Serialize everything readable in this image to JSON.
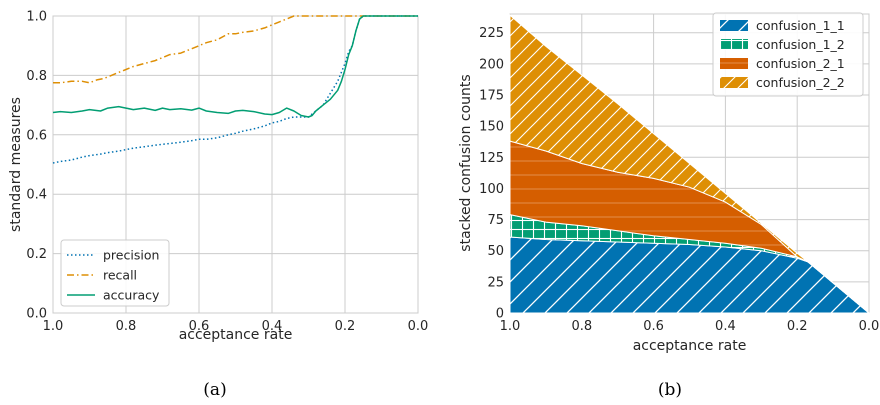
{
  "panel_a": {
    "caption": "(a)",
    "chart_data": {
      "type": "line",
      "xlabel": "acceptance rate",
      "ylabel": "standard measures",
      "xlim": [
        1.0,
        0.0
      ],
      "ylim": [
        0.0,
        1.0
      ],
      "x_reversed": true,
      "xticks": [
        "1.0",
        "0.8",
        "0.6",
        "0.4",
        "0.2",
        "0.0"
      ],
      "yticks": [
        "0.0",
        "0.2",
        "0.4",
        "0.6",
        "0.8",
        "1.0"
      ],
      "grid": true,
      "legend_position": "lower-left",
      "series": [
        {
          "name": "precision",
          "color": "#0072b2",
          "style": "dotted",
          "x": [
            1.0,
            0.98,
            0.95,
            0.92,
            0.9,
            0.87,
            0.85,
            0.82,
            0.8,
            0.78,
            0.75,
            0.72,
            0.7,
            0.67,
            0.65,
            0.62,
            0.6,
            0.58,
            0.55,
            0.52,
            0.5,
            0.48,
            0.45,
            0.42,
            0.4,
            0.38,
            0.36,
            0.34,
            0.32,
            0.3,
            0.28,
            0.26,
            0.24,
            0.22,
            0.2,
            0.19,
            0.18,
            0.17,
            0.16,
            0.15,
            0.1,
            0.05,
            0.0
          ],
          "y": [
            0.505,
            0.51,
            0.515,
            0.525,
            0.53,
            0.535,
            0.54,
            0.545,
            0.55,
            0.555,
            0.56,
            0.565,
            0.568,
            0.572,
            0.575,
            0.58,
            0.585,
            0.585,
            0.59,
            0.6,
            0.605,
            0.612,
            0.62,
            0.63,
            0.64,
            0.645,
            0.655,
            0.66,
            0.66,
            0.66,
            0.68,
            0.7,
            0.74,
            0.78,
            0.84,
            0.88,
            0.9,
            0.95,
            0.99,
            1.0,
            1.0,
            1.0,
            1.0
          ]
        },
        {
          "name": "recall",
          "color": "#de8f05",
          "style": "dashdot",
          "x": [
            1.0,
            0.98,
            0.95,
            0.92,
            0.9,
            0.88,
            0.86,
            0.84,
            0.82,
            0.8,
            0.78,
            0.75,
            0.72,
            0.7,
            0.68,
            0.65,
            0.62,
            0.6,
            0.58,
            0.55,
            0.52,
            0.5,
            0.48,
            0.45,
            0.42,
            0.4,
            0.38,
            0.36,
            0.34,
            0.32,
            0.3,
            0.2,
            0.1,
            0.0
          ],
          "y": [
            0.775,
            0.775,
            0.78,
            0.78,
            0.775,
            0.785,
            0.79,
            0.8,
            0.81,
            0.82,
            0.83,
            0.84,
            0.85,
            0.86,
            0.87,
            0.875,
            0.89,
            0.9,
            0.91,
            0.92,
            0.94,
            0.94,
            0.945,
            0.95,
            0.96,
            0.97,
            0.98,
            0.99,
            1.0,
            1.0,
            1.0,
            1.0,
            1.0,
            1.0
          ]
        },
        {
          "name": "accuracy",
          "color": "#029e73",
          "style": "solid",
          "x": [
            1.0,
            0.98,
            0.95,
            0.92,
            0.9,
            0.87,
            0.85,
            0.82,
            0.8,
            0.78,
            0.75,
            0.72,
            0.7,
            0.68,
            0.65,
            0.62,
            0.6,
            0.58,
            0.55,
            0.52,
            0.5,
            0.48,
            0.45,
            0.42,
            0.4,
            0.38,
            0.36,
            0.34,
            0.32,
            0.3,
            0.29,
            0.28,
            0.26,
            0.24,
            0.22,
            0.21,
            0.2,
            0.19,
            0.18,
            0.17,
            0.16,
            0.15,
            0.1,
            0.05,
            0.0
          ],
          "y": [
            0.675,
            0.678,
            0.675,
            0.68,
            0.685,
            0.68,
            0.69,
            0.695,
            0.69,
            0.685,
            0.69,
            0.682,
            0.69,
            0.685,
            0.688,
            0.683,
            0.69,
            0.68,
            0.675,
            0.672,
            0.68,
            0.682,
            0.678,
            0.67,
            0.668,
            0.675,
            0.69,
            0.68,
            0.665,
            0.66,
            0.665,
            0.68,
            0.7,
            0.72,
            0.75,
            0.78,
            0.82,
            0.87,
            0.9,
            0.95,
            0.99,
            1.0,
            1.0,
            1.0,
            1.0
          ]
        }
      ]
    }
  },
  "panel_b": {
    "caption": "(b)",
    "chart_data": {
      "type": "area",
      "stacked": true,
      "xlabel": "acceptance rate",
      "ylabel": "stacked confusion counts",
      "xlim": [
        1.0,
        0.0
      ],
      "ylim": [
        0,
        240
      ],
      "x_reversed": true,
      "xticks": [
        "1.0",
        "0.8",
        "0.6",
        "0.4",
        "0.2",
        "0.0"
      ],
      "yticks": [
        "0",
        "25",
        "50",
        "75",
        "100",
        "125",
        "150",
        "175",
        "200",
        "225"
      ],
      "grid": true,
      "legend_position": "top-right",
      "x": [
        1.0,
        0.9,
        0.8,
        0.7,
        0.6,
        0.5,
        0.4,
        0.3,
        0.2,
        0.17,
        0.0
      ],
      "series": [
        {
          "name": "confusion_1_1",
          "color": "#0173b2",
          "hatch": "/",
          "values": [
            61,
            59,
            58,
            57,
            56,
            55,
            53,
            50,
            44,
            41,
            0
          ]
        },
        {
          "name": "confusion_1_2",
          "color": "#029e73",
          "hatch": "+",
          "values": [
            18,
            14,
            12,
            9,
            6,
            4,
            3,
            2,
            1,
            0,
            0
          ]
        },
        {
          "name": "confusion_2_1",
          "color": "#d55e00",
          "hatch": "-",
          "values": [
            59,
            57,
            50,
            47,
            46,
            42,
            33,
            19,
            0,
            0,
            0
          ]
        },
        {
          "name": "confusion_2_2",
          "color": "#de8f05",
          "hatch": "//",
          "values": [
            101,
            84,
            71,
            55,
            36,
            19,
            7,
            1,
            3,
            0,
            0
          ]
        }
      ]
    }
  }
}
